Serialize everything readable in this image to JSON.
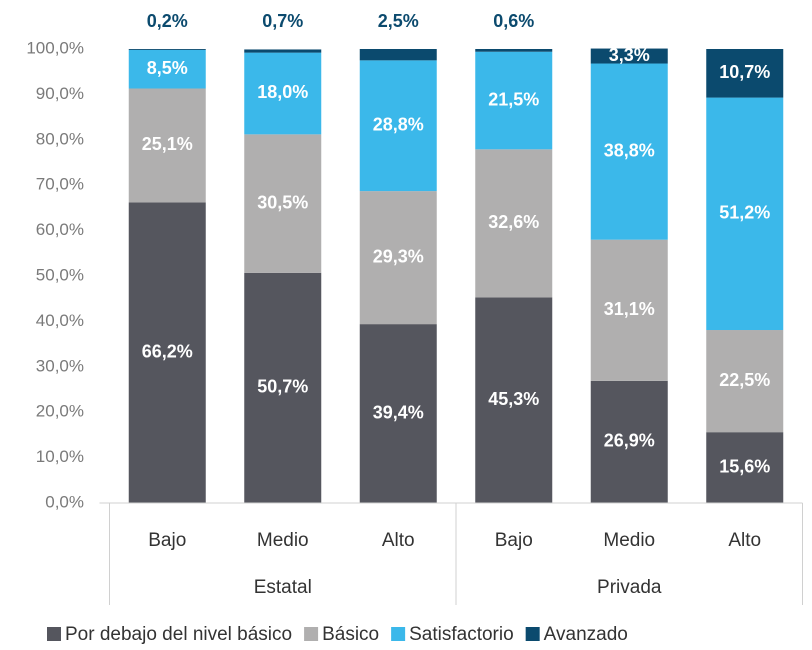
{
  "chart_data": {
    "type": "stacked_bar",
    "categories": [
      "Bajo",
      "Medio",
      "Alto",
      "Bajo",
      "Medio",
      "Alto"
    ],
    "groups": [
      "Estatal",
      "Privada"
    ],
    "series": [
      {
        "name": "Por debajo del nivel básico",
        "color": "#55565e",
        "values": [
          66.2,
          50.7,
          39.4,
          45.3,
          26.9,
          15.6
        ],
        "value_labels": [
          "66,2%",
          "50,7%",
          "39,4%",
          "45,3%",
          "26,9%",
          "15,6%"
        ]
      },
      {
        "name": "Básico",
        "color": "#b0afaf",
        "values": [
          25.1,
          30.5,
          29.3,
          32.6,
          31.1,
          22.5
        ],
        "value_labels": [
          "25,1%",
          "30,5%",
          "29,3%",
          "32,6%",
          "31,1%",
          "22,5%"
        ]
      },
      {
        "name": "Satisfactorio",
        "color": "#3bb8ea",
        "values": [
          8.5,
          18.0,
          28.8,
          21.5,
          38.8,
          51.2
        ],
        "value_labels": [
          "8,5%",
          "18,0%",
          "28,8%",
          "21,5%",
          "38,8%",
          "51,2%"
        ]
      },
      {
        "name": "Avanzado",
        "color": "#0b4a6e",
        "values": [
          0.2,
          0.7,
          2.5,
          0.6,
          3.3,
          10.7
        ],
        "value_labels": [
          "0,2%",
          "0,7%",
          "2,5%",
          "0,6%",
          "3,3%",
          "10,7%"
        ]
      }
    ],
    "ylim": [
      0,
      100
    ],
    "yticks": [
      {
        "value": 0,
        "label": "0,0%"
      },
      {
        "value": 10,
        "label": "10,0%"
      },
      {
        "value": 20,
        "label": "20,0%"
      },
      {
        "value": 30,
        "label": "30,0%"
      },
      {
        "value": 40,
        "label": "40,0%"
      },
      {
        "value": 50,
        "label": "50,0%"
      },
      {
        "value": 60,
        "label": "60,0%"
      },
      {
        "value": 70,
        "label": "70,0%"
      },
      {
        "value": 80,
        "label": "80,0%"
      },
      {
        "value": 90,
        "label": "90,0%"
      },
      {
        "value": 100,
        "label": "100,0%"
      }
    ],
    "grid": false,
    "legend": "bottom"
  }
}
